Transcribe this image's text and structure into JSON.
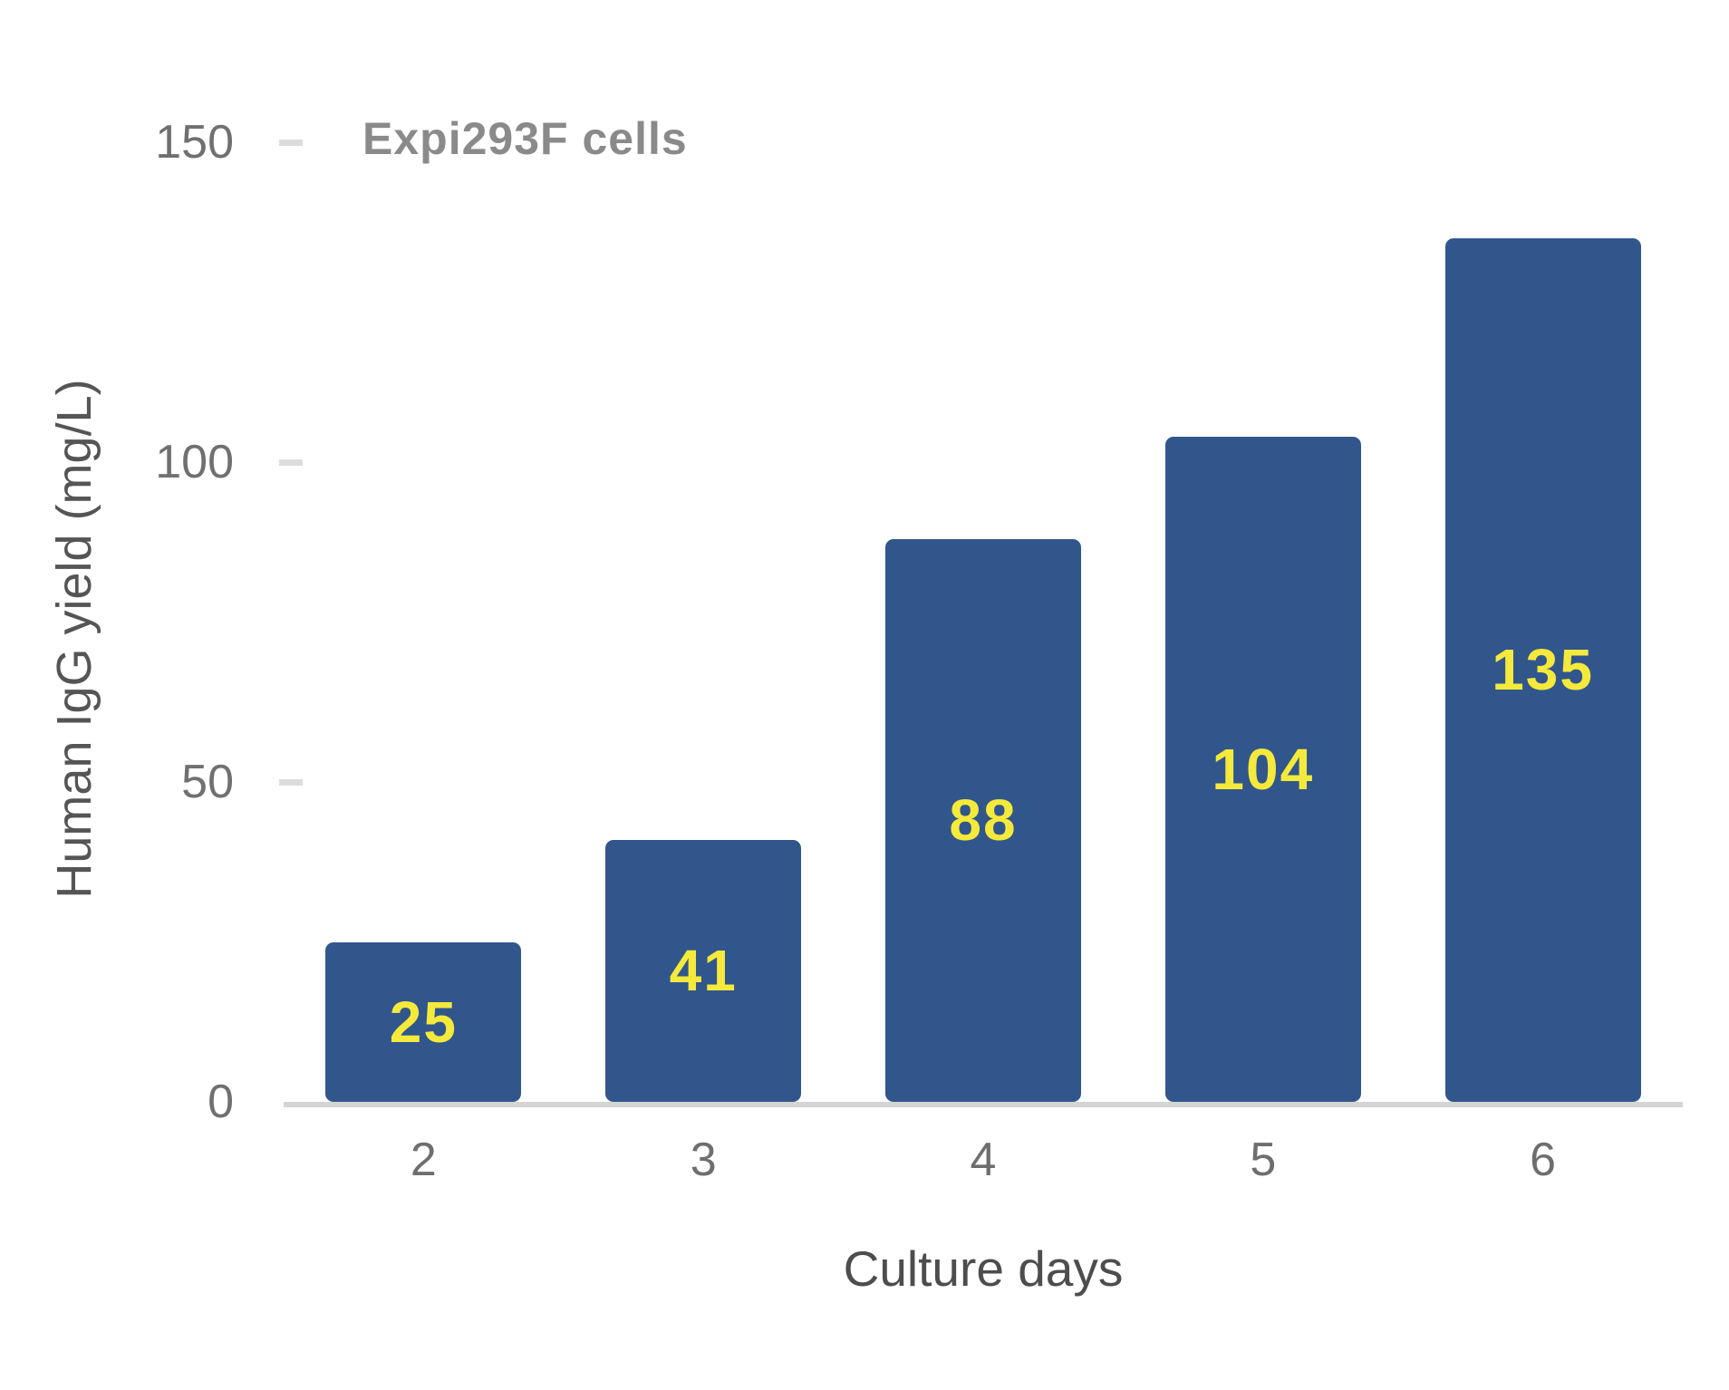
{
  "chart_data": {
    "type": "bar",
    "title": "Expi293F cells",
    "categories": [
      "2",
      "3",
      "4",
      "5",
      "6"
    ],
    "values": [
      25,
      41,
      88,
      104,
      135
    ],
    "xlabel": "Culture days",
    "ylabel": "Human IgG yield (mg/L)",
    "ylim": [
      0,
      150
    ],
    "yticks": [
      0,
      50,
      100,
      150
    ],
    "grid": false,
    "legend": "none",
    "bar_color": "#31568C",
    "value_label_color": "#F5EA3B",
    "axis_line_color": "#d5d5d5",
    "tick_mark_color": "#dcdcdc",
    "title_color": "#8a8a8a",
    "tick_label_color": "#707070",
    "axis_title_color": "#4d4d4d"
  }
}
